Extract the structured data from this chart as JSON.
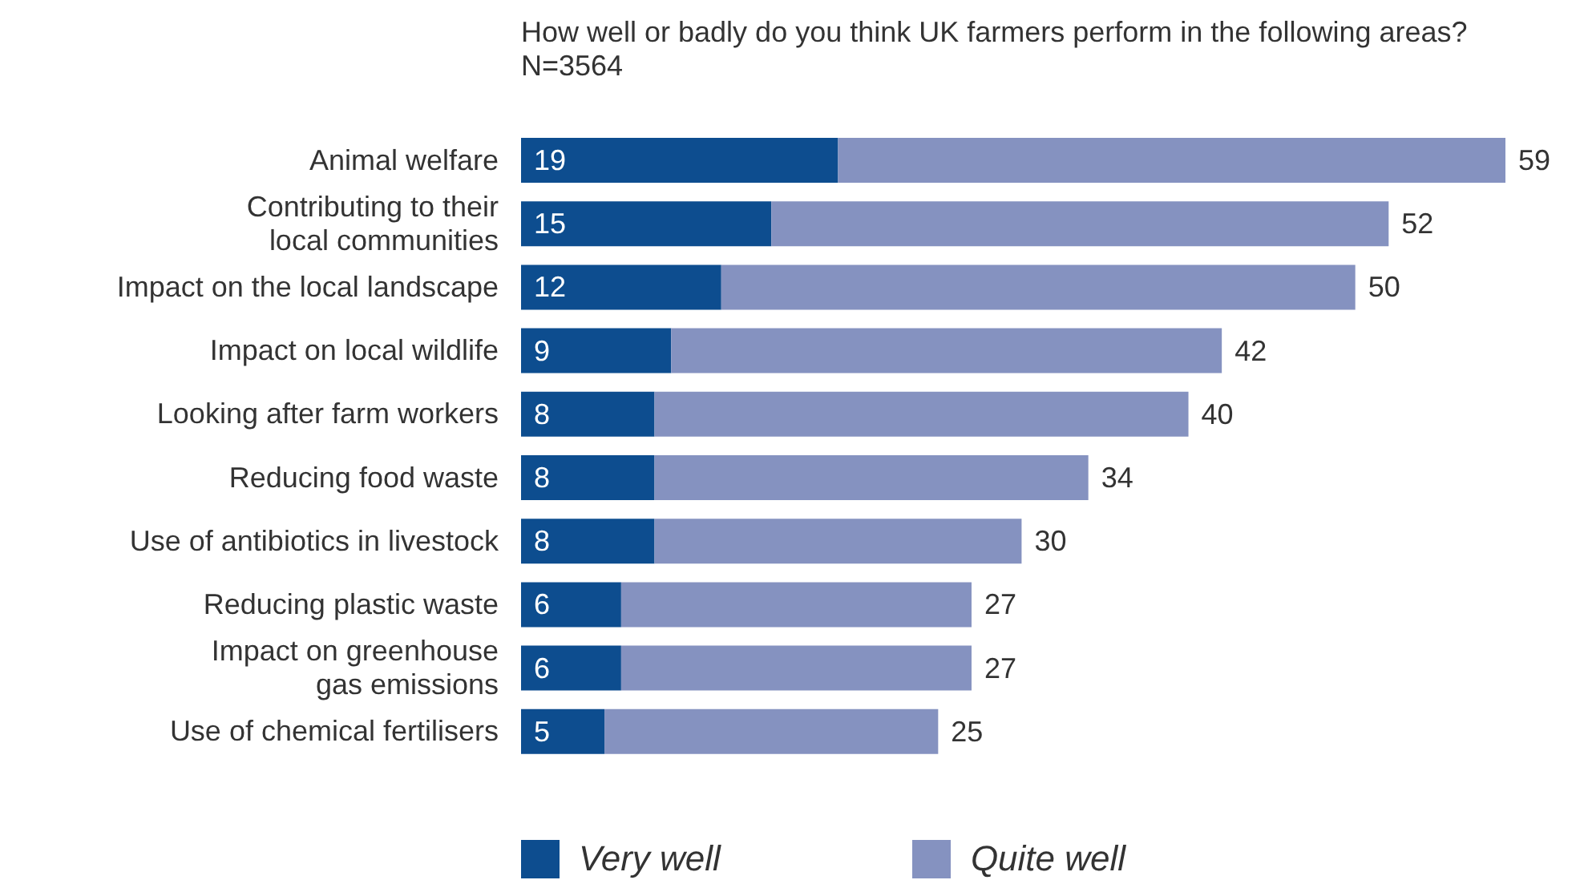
{
  "chart_data": {
    "type": "bar",
    "orientation": "horizontal",
    "stacked": true,
    "title": "How well or badly do you think UK farmers perform in the following areas? N=3564",
    "categories": [
      "Animal welfare",
      "Contributing to their local communities",
      "Impact on the local landscape",
      "Impact on local wildlife",
      "Looking after farm workers",
      "Reducing food waste",
      "Use of antibiotics in livestock",
      "Reducing plastic waste",
      "Impact on greenhouse gas emissions",
      "Use of chemical fertilisers"
    ],
    "series": [
      {
        "name": "Very well",
        "color": "#0d4d8f",
        "values": [
          19,
          15,
          12,
          9,
          8,
          8,
          8,
          6,
          6,
          5
        ],
        "value_labels": [
          "19",
          "15",
          "12",
          "9",
          "8",
          "8",
          "8",
          "6",
          "6",
          "5"
        ]
      },
      {
        "name": "Quite well",
        "color": "#8592c0",
        "values": [
          40,
          37,
          38,
          33,
          32,
          26,
          22,
          21,
          21,
          20
        ]
      }
    ],
    "totals": [
      "59",
      "52",
      "50",
      "42",
      "40",
      "34",
      "30",
      "27",
      "27",
      "25"
    ],
    "legend": "bottom"
  }
}
